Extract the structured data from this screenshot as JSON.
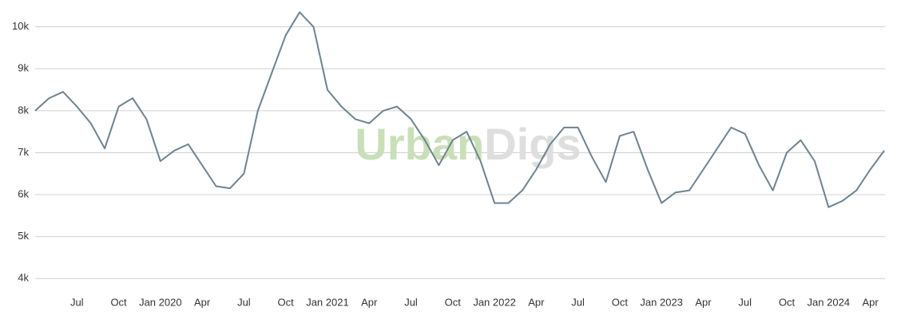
{
  "chart_data": {
    "type": "line",
    "watermark": [
      "Urban",
      "Digs"
    ],
    "x": [
      "2019-04",
      "2019-05",
      "2019-06",
      "2019-07",
      "2019-08",
      "2019-09",
      "2019-10",
      "2019-11",
      "2019-12",
      "2020-01",
      "2020-02",
      "2020-03",
      "2020-04",
      "2020-05",
      "2020-06",
      "2020-07",
      "2020-08",
      "2020-09",
      "2020-10",
      "2020-11",
      "2020-12",
      "2021-01",
      "2021-02",
      "2021-03",
      "2021-04",
      "2021-05",
      "2021-06",
      "2021-07",
      "2021-08",
      "2021-09",
      "2021-10",
      "2021-11",
      "2021-12",
      "2022-01",
      "2022-02",
      "2022-03",
      "2022-04",
      "2022-05",
      "2022-06",
      "2022-07",
      "2022-08",
      "2022-09",
      "2022-10",
      "2022-11",
      "2022-12",
      "2023-01",
      "2023-02",
      "2023-03",
      "2023-04",
      "2023-05",
      "2023-06",
      "2023-07",
      "2023-08",
      "2023-09",
      "2023-10",
      "2023-11",
      "2023-12",
      "2024-01",
      "2024-02",
      "2024-03",
      "2024-04",
      "2024-05"
    ],
    "series": [
      {
        "color": "#6e8290",
        "values": [
          8000,
          8300,
          8450,
          8100,
          7700,
          7100,
          8100,
          8300,
          7800,
          6800,
          7050,
          7200,
          6700,
          6200,
          6150,
          6500,
          8000,
          8900,
          9800,
          10350,
          10000,
          8500,
          8100,
          7800,
          7700,
          8000,
          8100,
          7800,
          7300,
          6700,
          7300,
          7500,
          6800,
          5800,
          5800,
          6100,
          6600,
          7200,
          7600,
          7600,
          6900,
          6300,
          7400,
          7500,
          6600,
          5800,
          6050,
          6100,
          6600,
          7100,
          7600,
          7450,
          6700,
          6100,
          7000,
          7300,
          6800,
          5700,
          5850,
          6100,
          6600,
          7050
        ]
      }
    ],
    "xlim": [
      "2019-04",
      "2024-05"
    ],
    "xticks": [
      {
        "value": "2019-07",
        "label": "Jul"
      },
      {
        "value": "2019-10",
        "label": "Oct"
      },
      {
        "value": "2020-01",
        "label": "Jan 2020"
      },
      {
        "value": "2020-04",
        "label": "Apr"
      },
      {
        "value": "2020-07",
        "label": "Jul"
      },
      {
        "value": "2020-10",
        "label": "Oct"
      },
      {
        "value": "2021-01",
        "label": "Jan 2021"
      },
      {
        "value": "2021-04",
        "label": "Apr"
      },
      {
        "value": "2021-07",
        "label": "Jul"
      },
      {
        "value": "2021-10",
        "label": "Oct"
      },
      {
        "value": "2022-01",
        "label": "Jan 2022"
      },
      {
        "value": "2022-04",
        "label": "Apr"
      },
      {
        "value": "2022-07",
        "label": "Jul"
      },
      {
        "value": "2022-10",
        "label": "Oct"
      },
      {
        "value": "2023-01",
        "label": "Jan 2023"
      },
      {
        "value": "2023-04",
        "label": "Apr"
      },
      {
        "value": "2023-07",
        "label": "Jul"
      },
      {
        "value": "2023-10",
        "label": "Oct"
      },
      {
        "value": "2024-01",
        "label": "Jan 2024"
      },
      {
        "value": "2024-04",
        "label": "Apr"
      }
    ],
    "ylim": [
      3700,
      10450
    ],
    "yticks": [
      {
        "value": 4000,
        "label": "4k"
      },
      {
        "value": 5000,
        "label": "5k"
      },
      {
        "value": 6000,
        "label": "6k"
      },
      {
        "value": 7000,
        "label": "7k"
      },
      {
        "value": 8000,
        "label": "8k"
      },
      {
        "value": 9000,
        "label": "9k"
      },
      {
        "value": 10000,
        "label": "10k"
      }
    ],
    "grid": true
  }
}
